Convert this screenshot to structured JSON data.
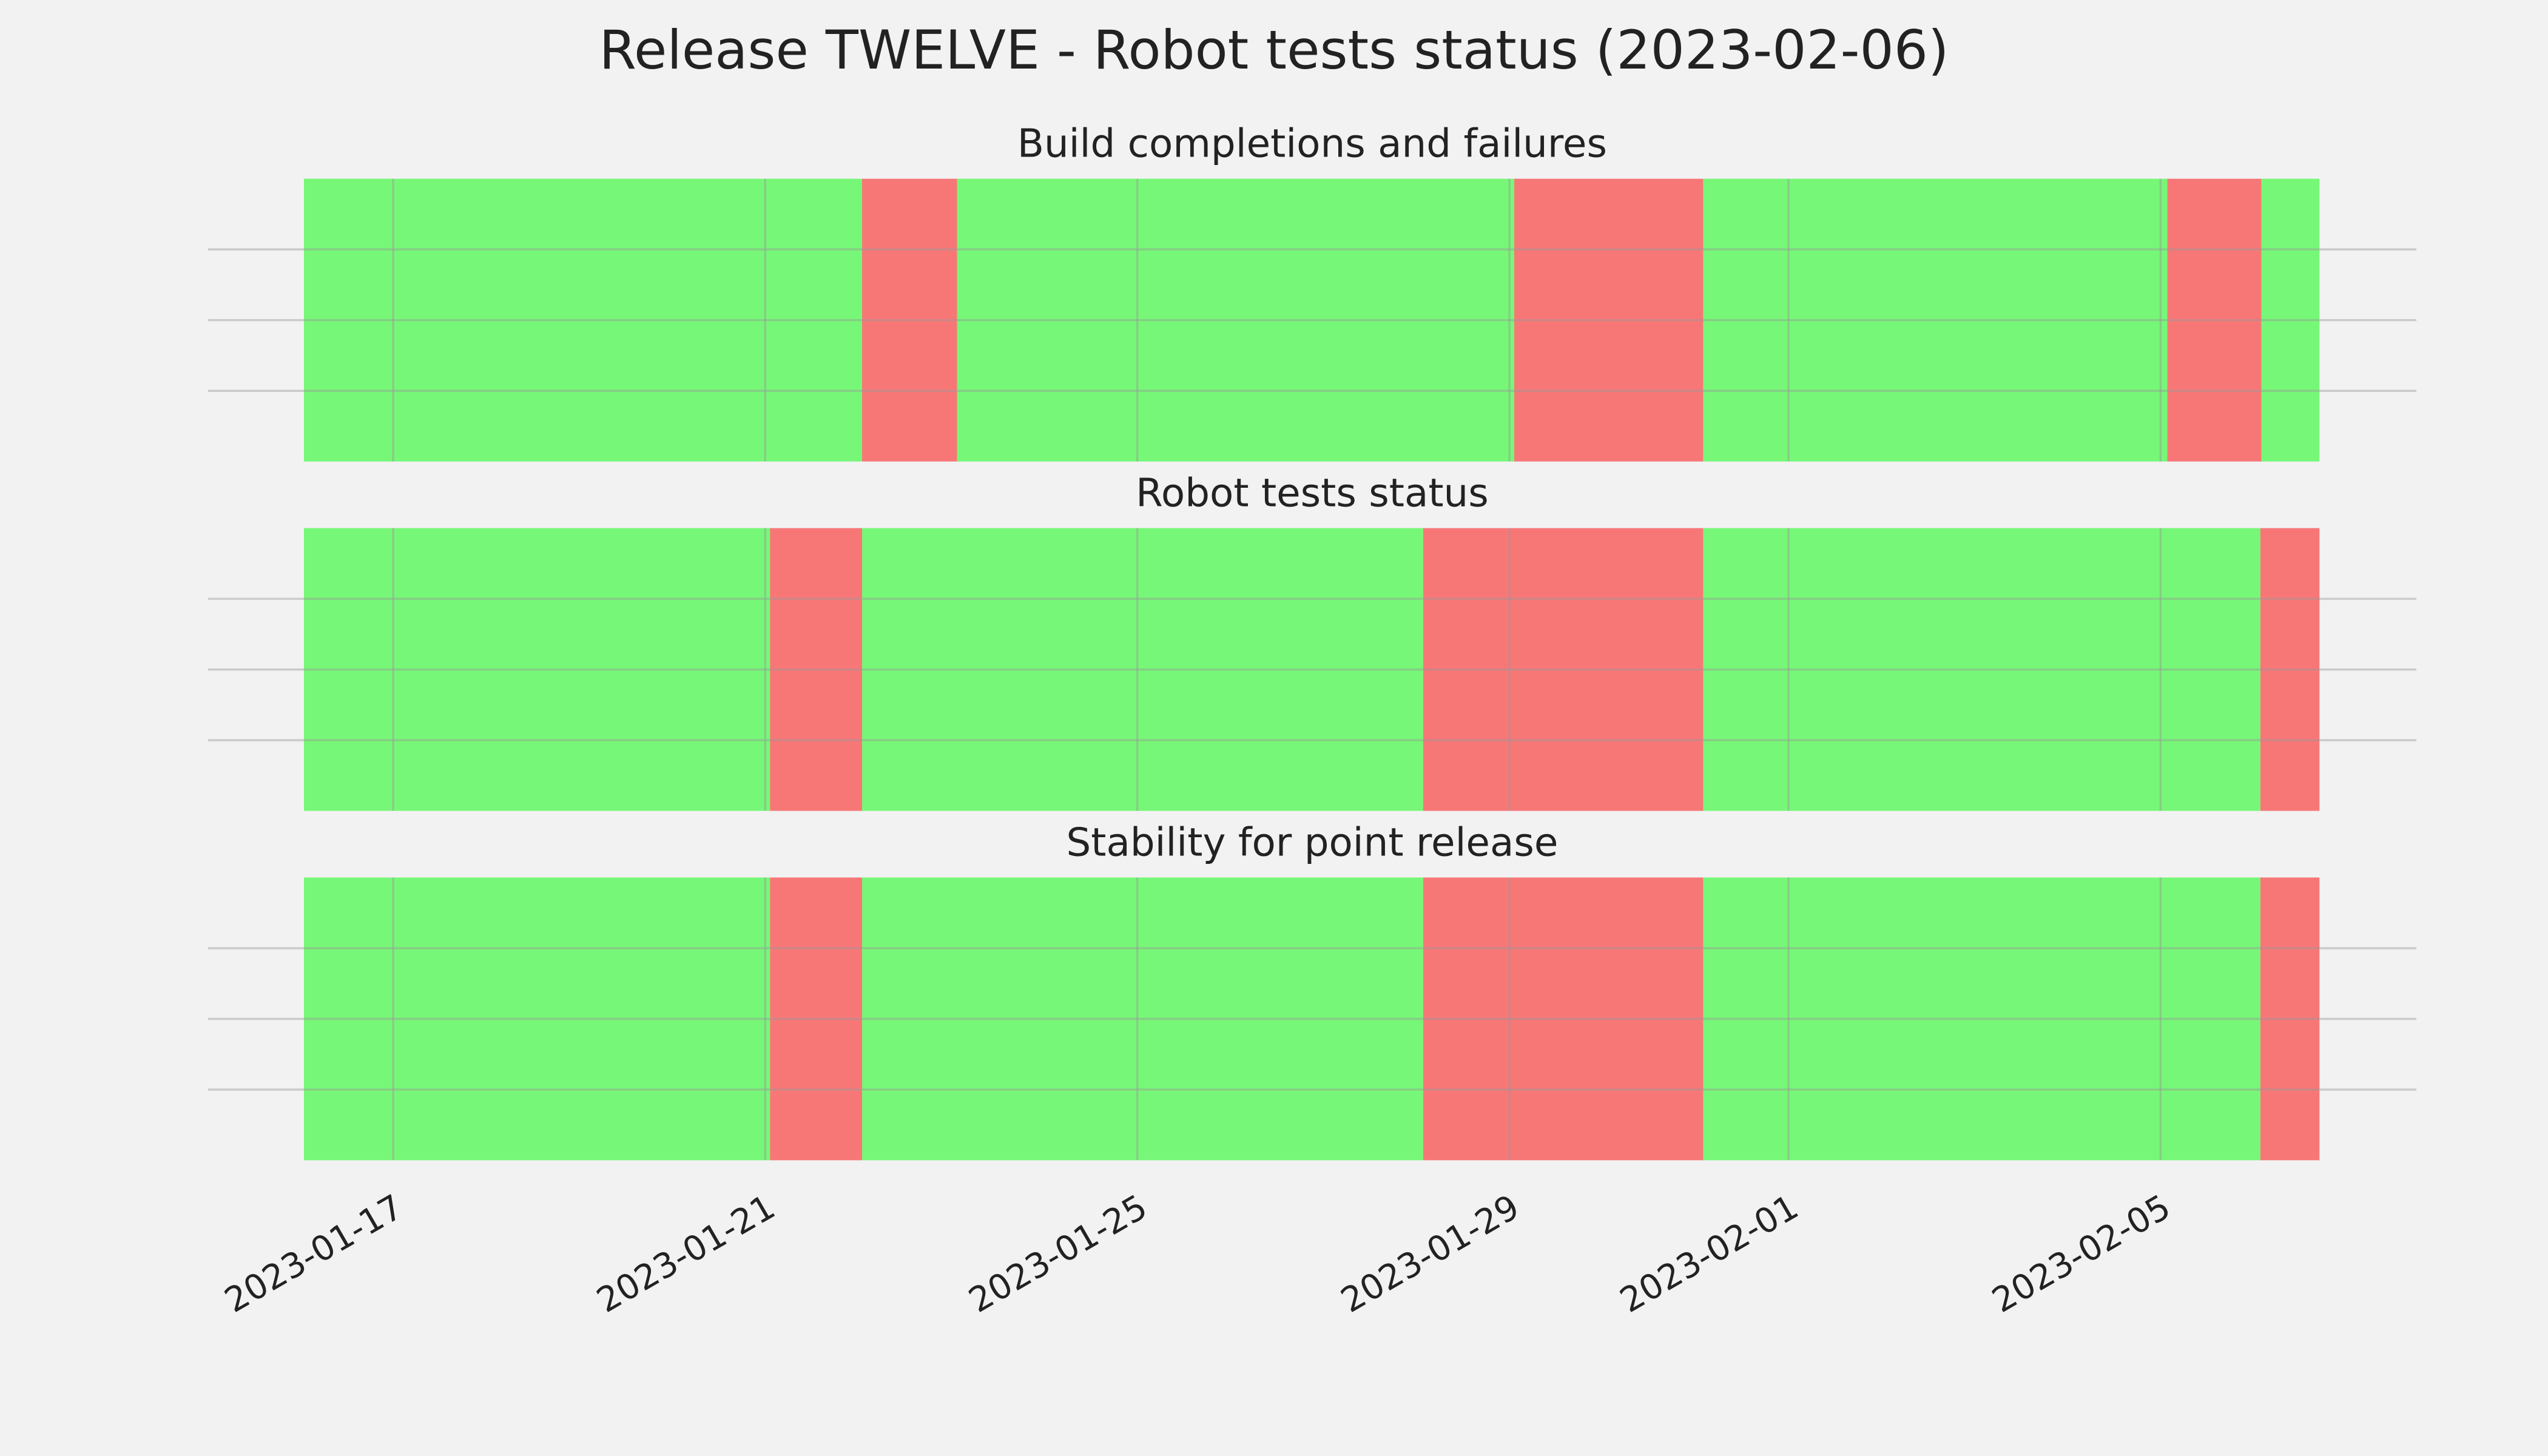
{
  "title": "Release TWELVE - Robot tests status (2023-02-06)",
  "chart_data": [
    {
      "type": "timeline",
      "title": "Build completions and failures",
      "segments": [
        {
          "start": "2023-01-16T01:00",
          "end": "2023-01-22T01:00",
          "color": "#77f777"
        },
        {
          "start": "2023-01-22T01:00",
          "end": "2023-01-23T01:30",
          "color": "#f77777"
        },
        {
          "start": "2023-01-23T01:30",
          "end": "2023-01-29T01:15",
          "color": "#77f777"
        },
        {
          "start": "2023-01-29T01:15",
          "end": "2023-01-31T02:00",
          "color": "#f77777"
        },
        {
          "start": "2023-01-31T02:00",
          "end": "2023-02-05T01:45",
          "color": "#77f777"
        },
        {
          "start": "2023-02-05T01:45",
          "end": "2023-02-06T02:00",
          "color": "#f77777"
        },
        {
          "start": "2023-02-06T02:00",
          "end": "2023-02-06T17:00",
          "color": "#77f777"
        }
      ],
      "xlim": [
        "2023-01-15T00:15",
        "2023-02-07T18:00"
      ],
      "xticks": [
        "2023-01-17",
        "2023-01-21",
        "2023-01-25",
        "2023-01-29",
        "2023-02-01",
        "2023-02-05"
      ],
      "ylim": [
        0,
        1
      ],
      "yticks": [
        0.25,
        0.5,
        0.75
      ],
      "grid": true
    },
    {
      "type": "timeline",
      "title": "Robot tests status",
      "segments": [
        {
          "start": "2023-01-16T01:00",
          "end": "2023-01-21T01:15",
          "color": "#77f777"
        },
        {
          "start": "2023-01-21T01:15",
          "end": "2023-01-22T01:00",
          "color": "#f77777"
        },
        {
          "start": "2023-01-22T01:00",
          "end": "2023-01-28T01:45",
          "color": "#77f777"
        },
        {
          "start": "2023-01-28T01:45",
          "end": "2023-01-31T02:00",
          "color": "#f77777"
        },
        {
          "start": "2023-01-31T02:00",
          "end": "2023-02-06T01:45",
          "color": "#77f777"
        },
        {
          "start": "2023-02-06T01:45",
          "end": "2023-02-06T17:00",
          "color": "#f77777"
        }
      ],
      "xlim": [
        "2023-01-15T00:15",
        "2023-02-07T18:00"
      ],
      "xticks": [
        "2023-01-17",
        "2023-01-21",
        "2023-01-25",
        "2023-01-29",
        "2023-02-01",
        "2023-02-05"
      ],
      "ylim": [
        0,
        1
      ],
      "yticks": [
        0.25,
        0.5,
        0.75
      ],
      "grid": true
    },
    {
      "type": "timeline",
      "title": "Stability for point release",
      "segments": [
        {
          "start": "2023-01-16T01:00",
          "end": "2023-01-21T01:15",
          "color": "#77f777"
        },
        {
          "start": "2023-01-21T01:15",
          "end": "2023-01-22T01:00",
          "color": "#f77777"
        },
        {
          "start": "2023-01-22T01:00",
          "end": "2023-01-28T01:45",
          "color": "#77f777"
        },
        {
          "start": "2023-01-28T01:45",
          "end": "2023-01-31T02:00",
          "color": "#f77777"
        },
        {
          "start": "2023-01-31T02:00",
          "end": "2023-02-06T01:45",
          "color": "#77f777"
        },
        {
          "start": "2023-02-06T01:45",
          "end": "2023-02-06T17:00",
          "color": "#f77777"
        }
      ],
      "xlim": [
        "2023-01-15T00:15",
        "2023-02-07T18:00"
      ],
      "xticks": [
        "2023-01-17",
        "2023-01-21",
        "2023-01-25",
        "2023-01-29",
        "2023-02-01",
        "2023-02-05"
      ],
      "ylim": [
        0,
        1
      ],
      "yticks": [
        0.25,
        0.5,
        0.75
      ],
      "grid": true
    }
  ]
}
